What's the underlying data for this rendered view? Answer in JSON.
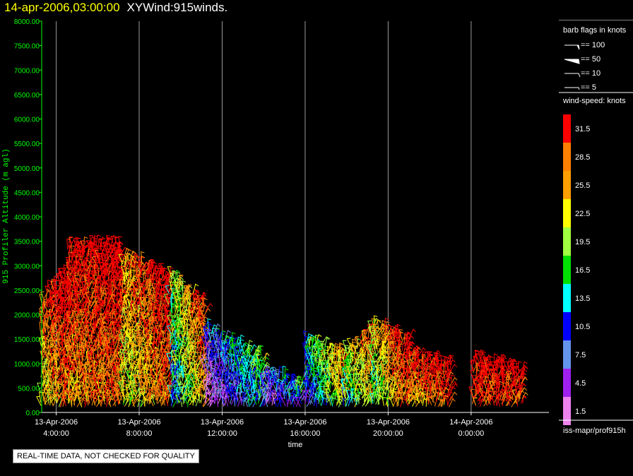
{
  "header": {
    "date": "14-apr-2006,03:00:00",
    "title": "XYWind:915winds."
  },
  "notice": "REAL-TIME DATA, NOT CHECKED FOR QUALITY",
  "legend": {
    "barb_title": "barb flags in knots",
    "barbs": [
      "== 100",
      "== 50",
      "== 10",
      "== 5"
    ],
    "speed_title": "wind-speed: knots",
    "footer": "iss-mapr/prof915h"
  },
  "chart_data": {
    "type": "scatter",
    "title": "14-apr-2006,03:00:00  XYWind:915winds.",
    "xlabel": "time",
    "ylabel": "915 Profiler Altitude (m agl)",
    "ylim": [
      0,
      8000
    ],
    "yticks": [
      "0.00",
      "500.00",
      "1000.00",
      "1500.00",
      "2000.00",
      "2500.00",
      "3000.00",
      "3500.00",
      "4000.00",
      "4500.00",
      "5000.00",
      "5500.00",
      "6000.00",
      "6500.00",
      "7000.00",
      "7500.00",
      "8000.00"
    ],
    "xlim_hours": [
      3.3,
      27.75
    ],
    "xticks": [
      {
        "hour": 4,
        "line1": "13-Apr-2006",
        "line2": "4:00:00"
      },
      {
        "hour": 8,
        "line1": "13-Apr-2006",
        "line2": "8:00:00"
      },
      {
        "hour": 12,
        "line1": "13-Apr-2006",
        "line2": "12:00:00"
      },
      {
        "hour": 16,
        "line1": "13-Apr-2006",
        "line2": "16:00:00"
      },
      {
        "hour": 20,
        "line1": "13-Apr-2006",
        "line2": "20:00:00"
      },
      {
        "hour": 24,
        "line1": "14-Apr-2006",
        "line2": "0:00:00"
      }
    ],
    "grid": "vertical",
    "colorbar": {
      "labels": [
        "31.5",
        "28.5",
        "25.5",
        "22.5",
        "19.5",
        "16.5",
        "13.5",
        "10.5",
        "7.5",
        "4.5",
        "1.5"
      ],
      "colors": [
        "#ff0000",
        "#ff7f00",
        "#ff9f00",
        "#ffff00",
        "#a0ff40",
        "#00e000",
        "#00ffff",
        "#0000ff",
        "#6495ed",
        "#a020f0",
        "#ee82ee"
      ]
    },
    "series": [
      {
        "x": [
          3.3,
          4.6
        ],
        "top": [
          2300,
          3000
        ],
        "speed": [
          24,
          31.5
        ]
      },
      {
        "x": [
          4.6,
          7.2
        ],
        "top": [
          3400,
          3400
        ],
        "speed": [
          28,
          31.5
        ]
      },
      {
        "x": [
          7.2,
          9.5
        ],
        "top": [
          3200,
          2800
        ],
        "speed": [
          22,
          31.5
        ]
      },
      {
        "x": [
          9.5,
          11.2
        ],
        "top": [
          2800,
          2200
        ],
        "speed": [
          14,
          28
        ]
      },
      {
        "x": [
          11.2,
          14.0
        ],
        "top": [
          1700,
          1100
        ],
        "speed": [
          4,
          16
        ]
      },
      {
        "x": [
          14.0,
          15.8
        ],
        "top": [
          800,
          600
        ],
        "speed": [
          4,
          12
        ]
      },
      {
        "x": [
          16.0,
          17.9
        ],
        "top": [
          1500,
          1200
        ],
        "speed": [
          10,
          24
        ]
      },
      {
        "x": [
          17.9,
          19.2
        ],
        "top": [
          1200,
          1700
        ],
        "speed": [
          16,
          26
        ]
      },
      {
        "x": [
          19.2,
          21.0
        ],
        "top": [
          1800,
          1500
        ],
        "speed": [
          18,
          31.5
        ]
      },
      {
        "x": [
          21.0,
          23.0
        ],
        "top": [
          1200,
          1000
        ],
        "speed": [
          26,
          31.5
        ]
      },
      {
        "x": [
          24.1,
          26.5
        ],
        "top": [
          1100,
          900
        ],
        "speed": [
          31,
          31.5
        ]
      }
    ]
  }
}
